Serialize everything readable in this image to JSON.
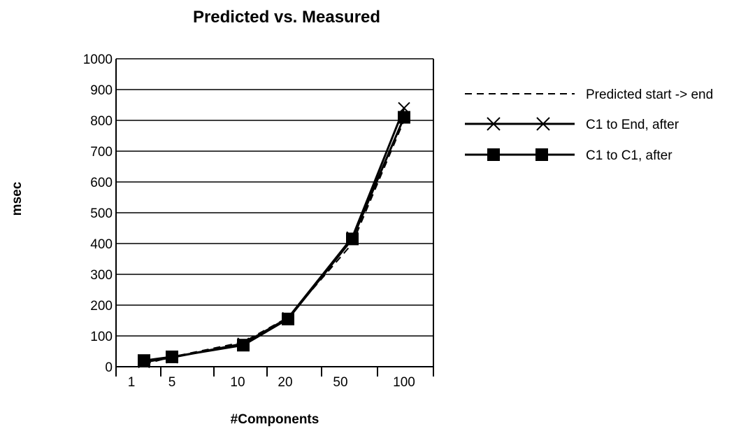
{
  "chart_data": {
    "type": "line",
    "title": "Predicted vs. Measured",
    "xlabel": "#Components",
    "ylabel": "msec",
    "categories": [
      "1",
      "5",
      "10",
      "20",
      "50",
      "100"
    ],
    "ylim": [
      0,
      1000
    ],
    "yticks": [
      "0",
      "100",
      "200",
      "300",
      "400",
      "500",
      "600",
      "700",
      "800",
      "900",
      "1000"
    ],
    "grid": true,
    "legend_position": "right",
    "series": [
      {
        "name": "Predicted start -> end",
        "style": "dashed",
        "marker": "none",
        "values": [
          8,
          32,
          80,
          160,
          400,
          800
        ]
      },
      {
        "name": "C1 to End, after",
        "style": "solid",
        "marker": "x",
        "values": [
          15,
          30,
          75,
          158,
          420,
          840
        ]
      },
      {
        "name": "C1 to C1, after",
        "style": "solid",
        "marker": "square",
        "values": [
          20,
          32,
          70,
          155,
          415,
          810
        ]
      }
    ]
  }
}
